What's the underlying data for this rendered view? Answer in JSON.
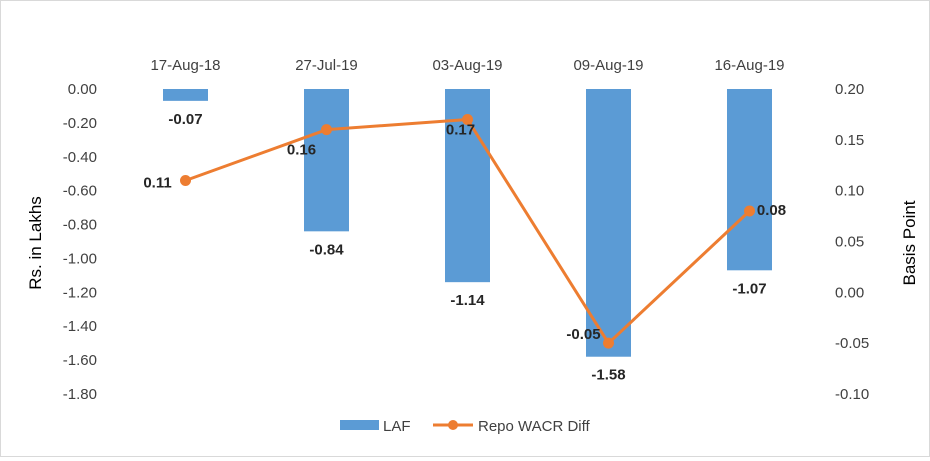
{
  "chart_data": {
    "type": "bar+line",
    "categories": [
      "17-Aug-18",
      "27-Jul-19",
      "03-Aug-19",
      "09-Aug-19",
      "16-Aug-19"
    ],
    "series": [
      {
        "name": "LAF",
        "type": "bar",
        "axis": "left",
        "color": "#5b9bd5",
        "values": [
          -0.07,
          -0.84,
          -1.14,
          -1.58,
          -1.07
        ],
        "labels": [
          "-0.07",
          "-0.84",
          "-1.14",
          "-1.58",
          "-1.07"
        ]
      },
      {
        "name": "Repo WACR Diff",
        "type": "line",
        "axis": "right",
        "color": "#ed7d31",
        "values": [
          0.11,
          0.16,
          0.17,
          -0.05,
          0.08
        ],
        "labels": [
          "0.11",
          "0.16",
          "0.17",
          "-0.05",
          "0.08"
        ]
      }
    ],
    "ylabel": "Rs. in Lakhs",
    "y2label": "Basis Point",
    "ylim": [
      -1.8,
      0.0
    ],
    "y2lim": [
      -0.1,
      0.2
    ],
    "yticks": [
      "0.00",
      "-0.20",
      "-0.40",
      "-0.60",
      "-0.80",
      "-1.00",
      "-1.20",
      "-1.40",
      "-1.60",
      "-1.80"
    ],
    "y2ticks": [
      "0.20",
      "0.15",
      "0.10",
      "0.05",
      "0.00",
      "-0.05",
      "-0.10"
    ],
    "x_axis_position": "top",
    "grid": false,
    "legend": "bottom"
  }
}
